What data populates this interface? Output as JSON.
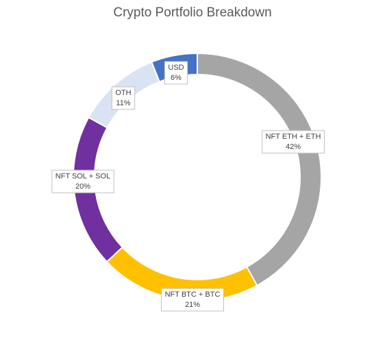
{
  "chart_data": {
    "type": "pie",
    "variant": "donut",
    "title": "Crypto Portfolio Breakdown",
    "legend": "none",
    "slices": [
      {
        "label": "NFT ETH + ETH",
        "value": 42,
        "value_label": "42%",
        "color": "#A5A5A5"
      },
      {
        "label": "NFT BTC + BTC",
        "value": 21,
        "value_label": "21%",
        "color": "#FFC000"
      },
      {
        "label": "NFT SOL + SOL",
        "value": 20,
        "value_label": "20%",
        "color": "#7030A0"
      },
      {
        "label": "OTH",
        "value": 11,
        "value_label": "11%",
        "color": "#DAE3F3"
      },
      {
        "label": "USD",
        "value": 6,
        "value_label": "6%",
        "color": "#4472C4"
      }
    ]
  }
}
